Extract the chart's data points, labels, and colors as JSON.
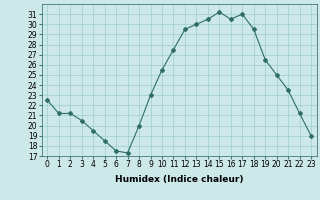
{
  "x": [
    0,
    1,
    2,
    3,
    4,
    5,
    6,
    7,
    8,
    9,
    10,
    11,
    12,
    13,
    14,
    15,
    16,
    17,
    18,
    19,
    20,
    21,
    22,
    23
  ],
  "y": [
    22.5,
    21.2,
    21.2,
    20.5,
    19.5,
    18.5,
    17.5,
    17.3,
    20.0,
    23.0,
    25.5,
    27.5,
    29.5,
    30.0,
    30.5,
    31.2,
    30.5,
    31.0,
    29.5,
    26.5,
    25.0,
    23.5,
    21.2,
    19.0
  ],
  "line_color": "#2e6e65",
  "marker": "D",
  "marker_size": 2,
  "bg_color": "#cce8e8",
  "grid_color": "#9ecece",
  "xlabel": "Humidex (Indice chaleur)",
  "ylim": [
    17,
    32
  ],
  "yticks": [
    17,
    18,
    19,
    20,
    21,
    22,
    23,
    24,
    25,
    26,
    27,
    28,
    29,
    30,
    31
  ],
  "xticks": [
    0,
    1,
    2,
    3,
    4,
    5,
    6,
    7,
    8,
    9,
    10,
    11,
    12,
    13,
    14,
    15,
    16,
    17,
    18,
    19,
    20,
    21,
    22,
    23
  ],
  "label_fontsize": 6.5,
  "tick_fontsize": 5.5
}
